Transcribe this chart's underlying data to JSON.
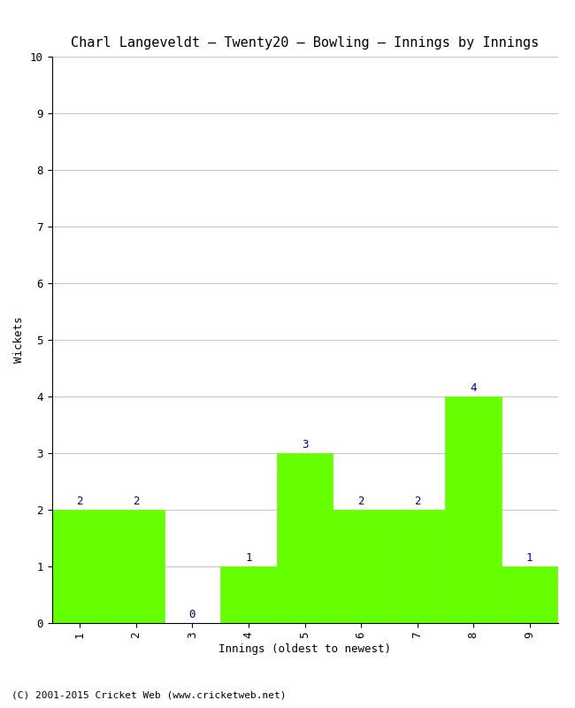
{
  "title": "Charl Langeveldt – Twenty20 – Bowling – Innings by Innings",
  "categories": [
    "1",
    "2",
    "3",
    "4",
    "5",
    "6",
    "7",
    "8",
    "9"
  ],
  "values": [
    2,
    2,
    0,
    1,
    3,
    2,
    2,
    4,
    1
  ],
  "bar_color": "#66ff00",
  "bar_edge_color": "#66ff00",
  "xlabel": "Innings (oldest to newest)",
  "ylabel": "Wickets",
  "ylim": [
    0,
    10
  ],
  "yticks": [
    0,
    1,
    2,
    3,
    4,
    5,
    6,
    7,
    8,
    9,
    10
  ],
  "label_color": "#000080",
  "background_color": "#ffffff",
  "grid_color": "#c8c8c8",
  "footer": "(C) 2001-2015 Cricket Web (www.cricketweb.net)",
  "title_fontsize": 11,
  "axis_label_fontsize": 9,
  "tick_fontsize": 9,
  "value_label_fontsize": 9,
  "footer_fontsize": 8
}
